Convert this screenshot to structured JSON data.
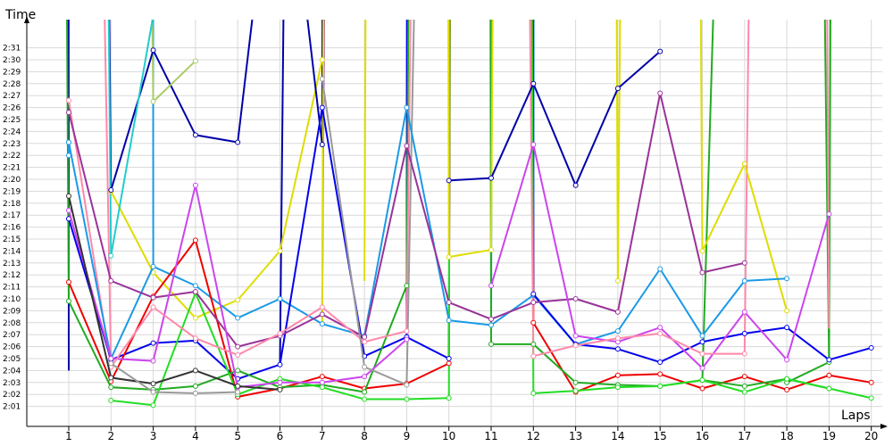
{
  "chart_data": {
    "type": "line",
    "title": "",
    "ylabel": "Time",
    "xlabel": "Laps",
    "grid": true,
    "legend": "none",
    "x": [
      1,
      2,
      3,
      4,
      5,
      6,
      7,
      8,
      9,
      10,
      11,
      12,
      13,
      14,
      15,
      16,
      17,
      18,
      19,
      20
    ],
    "xlim": [
      1,
      20
    ],
    "ylim": [
      "2:01",
      "2:31"
    ],
    "y_unit": "m:ss",
    "y_ticks": [
      "2:01",
      "2:02",
      "2:03",
      "2:04",
      "2:05",
      "2:06",
      "2:07",
      "2:08",
      "2:09",
      "2:10",
      "2:11",
      "2:12",
      "2:13",
      "2:14",
      "2:15",
      "2:16",
      "2:17",
      "2:18",
      "2:19",
      "2:20",
      "2:21",
      "2:22",
      "2:23",
      "2:24",
      "2:25",
      "2:26",
      "2:27",
      "2:28",
      "2:29",
      "2:30",
      "2:31"
    ],
    "series": [
      {
        "color": "#0000aa",
        "values": [
          null,
          139.1,
          150.8,
          143.7,
          143.1,
          173.0,
          142.9,
          null,
          null,
          null,
          null,
          null,
          null,
          null,
          null,
          null,
          null,
          null,
          null,
          null
        ]
      },
      {
        "color": "#0000aa",
        "values": [
          null,
          null,
          null,
          null,
          null,
          null,
          null,
          null,
          null,
          139.9,
          140.1,
          148.0,
          139.5,
          147.6,
          150.7,
          null,
          null,
          null,
          null,
          null
        ]
      },
      {
        "color": "#dddd00",
        "values": [
          null,
          null,
          null,
          null,
          null,
          null,
          null,
          null,
          null,
          null,
          null,
          null,
          null,
          null,
          null,
          134.0,
          141.3,
          129.0,
          null,
          null
        ]
      },
      {
        "color": "#1a9ae6",
        "values": [
          143.1,
          125.0,
          132.7,
          131.1,
          128.4,
          130.0,
          127.9,
          126.9,
          146.0,
          128.2,
          127.8,
          130.3,
          126.2,
          127.3,
          132.5,
          126.9,
          131.5,
          131.7,
          null,
          null
        ]
      },
      {
        "color": "#0000ee",
        "values": [
          136.7,
          124.9,
          126.3,
          126.5,
          123.3,
          124.5,
          146.0,
          125.2,
          126.8,
          125.0,
          null,
          130.4,
          126.2,
          125.8,
          124.7,
          126.4,
          127.1,
          127.6,
          124.9,
          125.9
        ]
      },
      {
        "color": "#ee0000",
        "values": [
          131.4,
          123.1,
          130.2,
          134.9,
          121.8,
          122.5,
          123.5,
          122.5,
          122.9,
          124.6,
          null,
          128.0,
          122.2,
          123.6,
          123.7,
          122.5,
          123.5,
          122.4,
          123.6,
          123.0
        ]
      },
      {
        "color": "#22aa22",
        "values": [
          129.8,
          122.6,
          122.4,
          122.7,
          124.0,
          122.6,
          122.8,
          122.2,
          131.1,
          null,
          126.2,
          126.2,
          123.0,
          122.8,
          122.7,
          123.2,
          122.7,
          123.3,
          122.5,
          null
        ]
      },
      {
        "color": "#22dd22",
        "values": [
          null,
          121.5,
          121.1,
          130.5,
          122.0,
          123.3,
          122.6,
          121.6,
          121.6,
          121.7,
          null,
          122.1,
          122.3,
          122.6,
          122.7,
          123.2,
          122.2,
          123.3,
          122.5,
          121.7
        ]
      },
      {
        "color": "#993399",
        "values": [
          145.6,
          131.5,
          130.1,
          130.6,
          126.0,
          126.9,
          128.7,
          126.8,
          142.8,
          129.7,
          128.3,
          129.7,
          130.0,
          128.9,
          147.2,
          132.2,
          133.0,
          null,
          null,
          null
        ]
      },
      {
        "color": "#cc44ee",
        "values": [
          137.4,
          125.0,
          124.8,
          139.5,
          122.6,
          123.0,
          123.0,
          123.5,
          126.6,
          null,
          131.1,
          142.9,
          126.9,
          126.4,
          127.6,
          124.2,
          128.9,
          124.9,
          137.1,
          null
        ]
      },
      {
        "color": "#ff88aa",
        "values": [
          null,
          124.3,
          129.3,
          126.7,
          125.3,
          127.1,
          129.3,
          126.4,
          127.3,
          null,
          null,
          125.2,
          126.1,
          126.7,
          127.1,
          125.4,
          125.4,
          null,
          null,
          null
        ]
      },
      {
        "color": "#333333",
        "values": [
          138.6,
          123.4,
          122.9,
          124.0,
          122.7,
          122.4,
          null,
          null,
          null,
          null,
          null,
          null,
          null,
          null,
          null,
          null,
          null,
          null,
          null,
          null
        ]
      },
      {
        "color": "#999999",
        "values": [
          null,
          124.6,
          122.2,
          122.1,
          122.2,
          null,
          148.4,
          124.3,
          122.8,
          null,
          null,
          null,
          null,
          null,
          null,
          null,
          null,
          null,
          null,
          null
        ]
      },
      {
        "color": "#aacc66",
        "values": [
          null,
          null,
          146.5,
          149.9,
          null,
          null,
          null,
          null,
          null,
          null,
          null,
          null,
          null,
          null,
          null,
          null,
          null,
          null,
          null,
          null
        ]
      },
      {
        "color": "#22cccc",
        "values": [
          null,
          133.6,
          153.7,
          null,
          null,
          null,
          null,
          null,
          null,
          null,
          null,
          null,
          null,
          null,
          null,
          null,
          null,
          null,
          null,
          null
        ]
      }
    ],
    "offscale_segments": [
      {
        "color": "#0000aa",
        "from": [
          1,
          124
        ],
        "to": [
          0.98,
          300
        ]
      },
      {
        "color": "#0000aa",
        "from": [
          2,
          139.1
        ],
        "to": [
          1.55,
          300
        ]
      },
      {
        "color": "#0000aa",
        "from": [
          7,
          142.9
        ],
        "to": [
          7.1,
          300
        ]
      },
      {
        "color": "#1a9ae6",
        "from": [
          3,
          132.7
        ],
        "to": [
          2.98,
          300
        ]
      },
      {
        "color": "#1a9ae6",
        "from": [
          9,
          146.0
        ],
        "to": [
          9.2,
          300
        ]
      },
      {
        "color": "#1a9ae6",
        "from": [
          11,
          127.8
        ],
        "to": [
          11.1,
          300
        ]
      },
      {
        "color": "#1a9ae6",
        "from": [
          12,
          130.3
        ],
        "to": [
          12.05,
          300
        ]
      },
      {
        "color": "#0000ee",
        "from": [
          10,
          125.0
        ],
        "to": [
          10.1,
          300
        ]
      },
      {
        "color": "#0000ee",
        "from": [
          12,
          130.4
        ],
        "to": [
          11.95,
          300
        ]
      },
      {
        "color": "#0000ee",
        "from": [
          9,
          126.8
        ],
        "to": [
          9.05,
          300
        ]
      },
      {
        "color": "#ee0000",
        "from": [
          10,
          124.6
        ],
        "to": [
          10.15,
          300
        ]
      },
      {
        "color": "#ee0000",
        "from": [
          12,
          128.0
        ],
        "to": [
          11.9,
          300
        ]
      },
      {
        "color": "#22aa22",
        "from": [
          9,
          131.1
        ],
        "to": [
          9.3,
          300
        ]
      },
      {
        "color": "#22aa22",
        "from": [
          11,
          126.2
        ],
        "to": [
          10.9,
          300
        ]
      },
      {
        "color": "#22aa22",
        "from": [
          19,
          124.7
        ],
        "to": [
          18.4,
          300
        ]
      },
      {
        "color": "#22aa22",
        "from": [
          19,
          124.7
        ],
        "to": [
          19.2,
          300
        ]
      },
      {
        "color": "#22aa22",
        "from": [
          16,
          123.2
        ],
        "to": [
          17.5,
          300
        ]
      },
      {
        "color": "#22aa22",
        "from": [
          1,
          129.8
        ],
        "to": [
          0.7,
          300
        ]
      },
      {
        "color": "#22dd22",
        "from": [
          10,
          121.7
        ],
        "to": [
          10.1,
          300
        ]
      },
      {
        "color": "#22dd22",
        "from": [
          12,
          122.1
        ],
        "to": [
          11.8,
          300
        ]
      },
      {
        "color": "#993399",
        "from": [
          7,
          128.7
        ],
        "to": [
          7.3,
          300
        ]
      },
      {
        "color": "#ff88aa",
        "from": [
          9,
          127.3
        ],
        "to": [
          9.6,
          300
        ]
      },
      {
        "color": "#ff88aa",
        "from": [
          2,
          124.3
        ],
        "to": [
          1.1,
          300
        ]
      },
      {
        "color": "#ff88aa",
        "from": [
          12,
          125.2
        ],
        "to": [
          11.5,
          300
        ]
      },
      {
        "color": "#ff88aa",
        "from": [
          17,
          125.4
        ],
        "to": [
          17.6,
          300
        ]
      },
      {
        "color": "#ff88aa",
        "from": [
          19,
          127.5
        ],
        "to": [
          18.7,
          300
        ]
      },
      {
        "color": "#999999",
        "from": [
          9,
          122.8
        ],
        "to": [
          10.0,
          300
        ]
      },
      {
        "color": "#dddd00",
        "from": [
          10,
          133.5
        ],
        "to": [
          9.9,
          300
        ]
      },
      {
        "color": "#dddd00",
        "from": [
          11,
          134.1
        ],
        "to": [
          11.3,
          300
        ]
      },
      {
        "color": "#dddd00",
        "from": [
          14,
          131.5
        ],
        "to": [
          13.8,
          300
        ]
      },
      {
        "color": "#dddd00",
        "from": [
          14,
          131.5
        ],
        "to": [
          14.4,
          300
        ]
      },
      {
        "color": "#dddd00",
        "from": [
          16,
          134.0
        ],
        "to": [
          15.7,
          300
        ]
      },
      {
        "color": "#dddd00",
        "from": [
          7,
          128.0
        ],
        "to": [
          7.2,
          300
        ]
      },
      {
        "color": "#dddd00",
        "from": [
          8,
          131.5
        ],
        "to": [
          8.2,
          300
        ]
      },
      {
        "color": "#22cccc",
        "from": [
          2,
          133.6
        ],
        "to": [
          1.55,
          300
        ]
      },
      {
        "color": "#aacc66",
        "from": [
          3,
          146.5
        ],
        "to": [
          2.5,
          300
        ]
      },
      {
        "color": "#0000aa",
        "from": [
          6,
          124.5
        ],
        "to": [
          6.5,
          300
        ]
      }
    ],
    "extra_segments": [
      {
        "color": "#dddd00",
        "points": [
          [
            2,
            139.0
          ],
          [
            3,
            132.2
          ],
          [
            4,
            128.4
          ],
          [
            5,
            129.9
          ],
          [
            6,
            134.0
          ],
          [
            7,
            150.0
          ]
        ]
      },
      {
        "color": "#dddd00",
        "points": [
          [
            10,
            133.5
          ],
          [
            11,
            134.1
          ]
        ]
      },
      {
        "color": "#dddd00",
        "points": [
          [
            14,
            131.5
          ]
        ]
      },
      {
        "color": "#22aa22",
        "points": [
          [
            18,
            123.0
          ],
          [
            19,
            124.7
          ]
        ]
      },
      {
        "color": "#ff88aa",
        "points": [
          [
            1,
            146.6
          ],
          [
            2,
            124.3
          ]
        ]
      },
      {
        "color": "#1a9ae6",
        "points": [
          [
            1,
            142.0
          ],
          [
            1,
            143.1
          ]
        ]
      }
    ]
  }
}
